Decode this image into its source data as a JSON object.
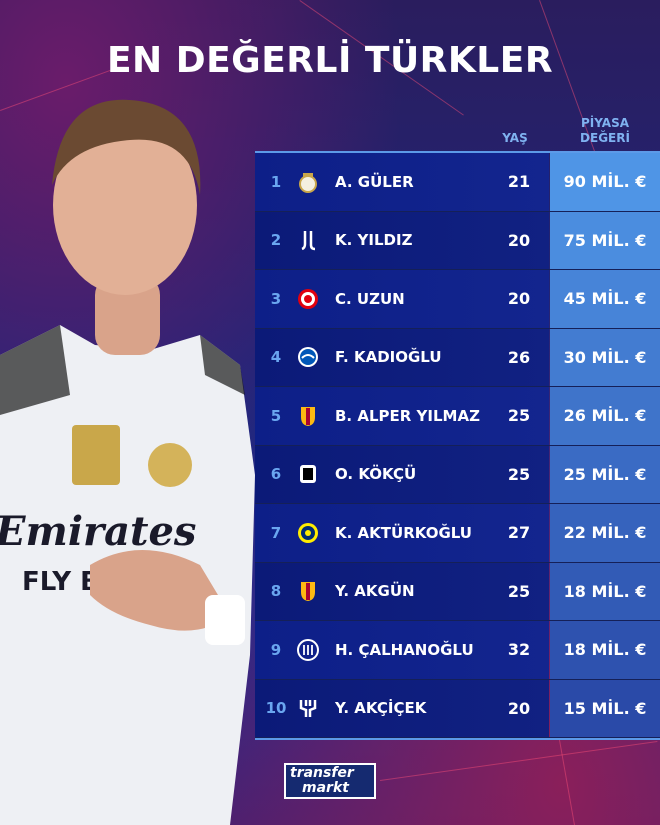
{
  "title": "EN DEĞERLİ TÜRKLER",
  "columns": {
    "age": "YAŞ",
    "value_line1": "PİYASA",
    "value_line2": "DEĞERİ"
  },
  "rows": [
    {
      "rank": "1",
      "club_icon": "real-madrid-crest",
      "name": "A. GÜLER",
      "age": "21",
      "value": "90 MİL. €"
    },
    {
      "rank": "2",
      "club_icon": "juventus-crest",
      "name": "K. YILDIZ",
      "age": "20",
      "value": "75 MİL. €"
    },
    {
      "rank": "3",
      "club_icon": "eintracht-frankfurt-crest",
      "name": "C. UZUN",
      "age": "20",
      "value": "45 MİL. €"
    },
    {
      "rank": "4",
      "club_icon": "brighton-crest",
      "name": "F. KADIOĞLU",
      "age": "26",
      "value": "30 MİL. €"
    },
    {
      "rank": "5",
      "club_icon": "galatasaray-crest",
      "name": "B. ALPER YILMAZ",
      "age": "25",
      "value": "26 MİL. €"
    },
    {
      "rank": "6",
      "club_icon": "besiktas-crest",
      "name": "O. KÖKÇÜ",
      "age": "25",
      "value": "25 MİL. €"
    },
    {
      "rank": "7",
      "club_icon": "fenerbahce-crest",
      "name": "K. AKTÜRKOĞLU",
      "age": "27",
      "value": "22 MİL. €"
    },
    {
      "rank": "8",
      "club_icon": "galatasaray-crest",
      "name": "Y. AKGÜN",
      "age": "25",
      "value": "18 MİL. €"
    },
    {
      "rank": "9",
      "club_icon": "inter-crest",
      "name": "H. ÇALHANOĞLU",
      "age": "32",
      "value": "18 MİL. €"
    },
    {
      "rank": "10",
      "club_icon": "al-hilal-crest",
      "name": "Y. AKÇİÇEK",
      "age": "20",
      "value": "15 MİL. €"
    }
  ],
  "logo": {
    "line1": "transfer",
    "line2": "markt"
  },
  "colors": {
    "value_top": "#4f95e6",
    "value_bottom": "#2a4aa8",
    "rank": "#6aa6f0"
  }
}
